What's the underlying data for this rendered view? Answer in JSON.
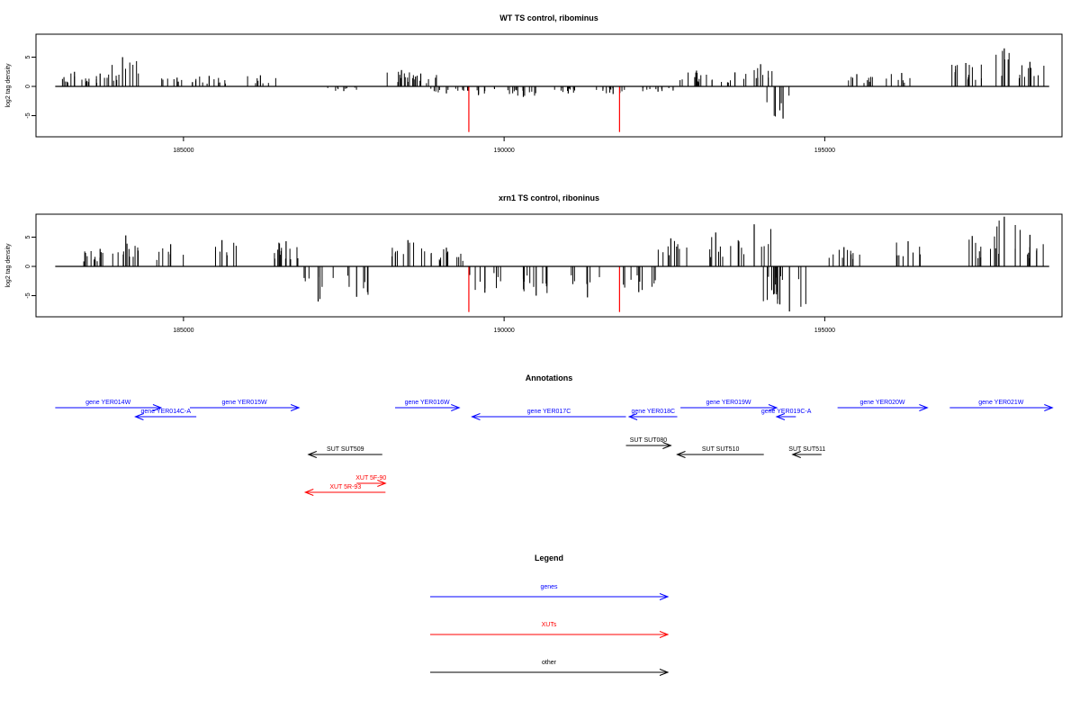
{
  "chart_data": [
    {
      "type": "bar",
      "title": "WT TS control, ribominus",
      "xlabel": "",
      "ylabel": "log2 tag density",
      "xlim": [
        183000,
        198500
      ],
      "ylim": [
        -8,
        8
      ],
      "xticks": [
        185000,
        190000,
        195000
      ],
      "yticks": [
        5,
        0,
        -5
      ],
      "bars": [
        {
          "x": 183300,
          "y": 2.5
        },
        {
          "x": 183700,
          "y": 2.2
        },
        {
          "x": 184050,
          "y": 5.0
        },
        {
          "x": 184900,
          "y": 1.5
        },
        {
          "x": 185400,
          "y": 1.8
        },
        {
          "x": 186200,
          "y": 1.9
        },
        {
          "x": 187500,
          "y": -0.8
        },
        {
          "x": 188400,
          "y": 2.8
        },
        {
          "x": 188700,
          "y": 2.2
        },
        {
          "x": 189100,
          "y": -1.2
        },
        {
          "x": 189600,
          "y": -1.5
        },
        {
          "x": 190300,
          "y": -1.8
        },
        {
          "x": 191000,
          "y": -1.2
        },
        {
          "x": 191700,
          "y": -1.3
        },
        {
          "x": 192400,
          "y": -0.9
        },
        {
          "x": 193000,
          "y": 2.7
        },
        {
          "x": 193600,
          "y": 2.4
        },
        {
          "x": 194000,
          "y": 3.8
        },
        {
          "x": 194350,
          "y": -5.5
        },
        {
          "x": 195500,
          "y": 2.1
        },
        {
          "x": 196200,
          "y": 2.3
        },
        {
          "x": 197200,
          "y": 4.0
        },
        {
          "x": 197800,
          "y": 6.5
        },
        {
          "x": 198200,
          "y": 4.2
        }
      ],
      "markers": [
        {
          "x": 189450,
          "y": -7.8,
          "color": "#ff0000"
        },
        {
          "x": 191800,
          "y": -7.8,
          "color": "#ff0000"
        }
      ]
    },
    {
      "type": "bar",
      "title": "xrn1 TS control, riboninus",
      "xlabel": "",
      "ylabel": "log2 tag density",
      "xlim": [
        183000,
        198500
      ],
      "ylim": [
        -8,
        8
      ],
      "xticks": [
        185000,
        190000,
        195000
      ],
      "yticks": [
        5,
        0,
        -5
      ],
      "bars": [
        {
          "x": 183700,
          "y": 3.0
        },
        {
          "x": 184100,
          "y": 5.3
        },
        {
          "x": 184800,
          "y": 3.8
        },
        {
          "x": 185600,
          "y": 4.5
        },
        {
          "x": 186600,
          "y": 4.3
        },
        {
          "x": 187100,
          "y": -6.0
        },
        {
          "x": 187700,
          "y": -5.2
        },
        {
          "x": 188500,
          "y": 4.5
        },
        {
          "x": 189100,
          "y": 3.2
        },
        {
          "x": 189700,
          "y": -4.5
        },
        {
          "x": 190500,
          "y": -5.0
        },
        {
          "x": 191300,
          "y": -5.3
        },
        {
          "x": 192100,
          "y": -4.4
        },
        {
          "x": 192600,
          "y": 4.8
        },
        {
          "x": 193300,
          "y": 5.8
        },
        {
          "x": 193900,
          "y": 7.2
        },
        {
          "x": 194300,
          "y": -6.5
        },
        {
          "x": 194450,
          "y": -7.7
        },
        {
          "x": 195300,
          "y": 3.3
        },
        {
          "x": 196300,
          "y": 4.3
        },
        {
          "x": 197300,
          "y": 5.2
        },
        {
          "x": 197800,
          "y": 8.5
        },
        {
          "x": 198200,
          "y": 5.4
        }
      ],
      "markers": [
        {
          "x": 189450,
          "y": -7.8,
          "color": "#ff0000"
        },
        {
          "x": 191800,
          "y": -7.8,
          "color": "#ff0000"
        }
      ]
    }
  ],
  "annotations": {
    "title": "Annotations",
    "features": [
      {
        "label": "gene YER014W",
        "start": 183000,
        "end": 184650,
        "strand": "+",
        "color": "#0000ff",
        "row": 1
      },
      {
        "label": "gene YER014C-A",
        "start": 184250,
        "end": 185200,
        "strand": "-",
        "color": "#0000ff",
        "row": 2
      },
      {
        "label": "gene YER015W",
        "start": 185100,
        "end": 186800,
        "strand": "+",
        "color": "#0000ff",
        "row": 1
      },
      {
        "label": "gene YER016W",
        "start": 188300,
        "end": 189300,
        "strand": "+",
        "color": "#0000ff",
        "row": 1
      },
      {
        "label": "gene YER017C",
        "start": 189500,
        "end": 191900,
        "strand": "-",
        "color": "#0000ff",
        "row": 2
      },
      {
        "label": "gene YER018C",
        "start": 191950,
        "end": 192700,
        "strand": "-",
        "color": "#0000ff",
        "row": 2
      },
      {
        "label": "gene YER019W",
        "start": 192750,
        "end": 194250,
        "strand": "+",
        "color": "#0000ff",
        "row": 1
      },
      {
        "label": "gene YER019C-A",
        "start": 194250,
        "end": 194550,
        "strand": "-",
        "color": "#0000ff",
        "row": 2
      },
      {
        "label": "gene YER020W",
        "start": 195200,
        "end": 196600,
        "strand": "+",
        "color": "#0000ff",
        "row": 1
      },
      {
        "label": "gene YER021W",
        "start": 196950,
        "end": 198550,
        "strand": "+",
        "color": "#0000ff",
        "row": 1
      },
      {
        "label": "SUT SUT509",
        "start": 186950,
        "end": 188100,
        "strand": "-",
        "color": "#000000",
        "row": 4
      },
      {
        "label": "SUT SUT080",
        "start": 191900,
        "end": 192600,
        "strand": "+",
        "color": "#000000",
        "row": 3
      },
      {
        "label": "SUT SUT510",
        "start": 192700,
        "end": 194050,
        "strand": "-",
        "color": "#000000",
        "row": 4
      },
      {
        "label": "SUT SUT511",
        "start": 194500,
        "end": 194950,
        "strand": "-",
        "color": "#000000",
        "row": 4
      },
      {
        "label": "XUT 5F-90",
        "start": 187700,
        "end": 188150,
        "strand": "+",
        "color": "#ff0000",
        "row": 5
      },
      {
        "label": "XUT 5R-93",
        "start": 186900,
        "end": 188150,
        "strand": "-",
        "color": "#ff0000",
        "row": 6
      }
    ]
  },
  "legend": {
    "title": "Legend",
    "items": [
      {
        "label": "genes",
        "color": "#0000ff"
      },
      {
        "label": "XUTs",
        "color": "#ff0000"
      },
      {
        "label": "other",
        "color": "#000000"
      }
    ]
  }
}
